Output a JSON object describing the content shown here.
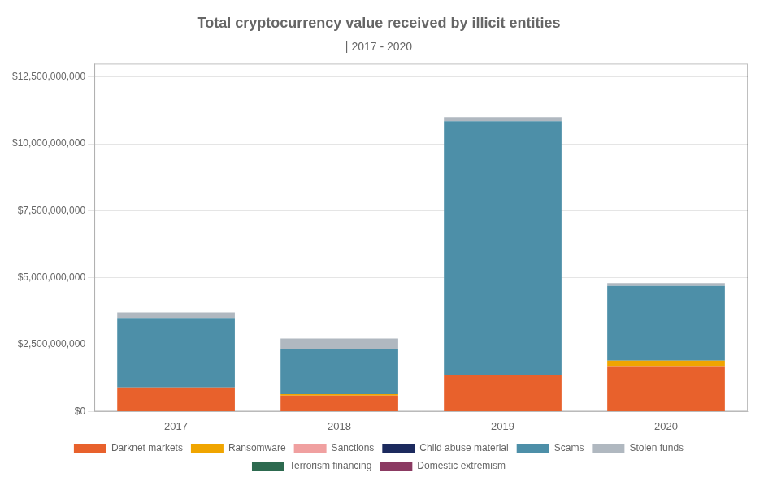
{
  "chart_data": {
    "type": "bar",
    "title": "Total cryptocurrency value received by illicit entities",
    "subtitle": "| 2017 - 2020",
    "categories": [
      "2017",
      "2018",
      "2019",
      "2020"
    ],
    "series": [
      {
        "name": "Darknet markets",
        "color": "#e8612c",
        "values": [
          900000000,
          600000000,
          1350000000,
          1700000000
        ]
      },
      {
        "name": "Ransomware",
        "color": "#f0a500",
        "values": [
          0,
          50000000,
          0,
          200000000
        ]
      },
      {
        "name": "Sanctions",
        "color": "#f0a0a0",
        "values": [
          0,
          0,
          0,
          0
        ]
      },
      {
        "name": "Child abuse material",
        "color": "#1c2a5e",
        "values": [
          0,
          0,
          0,
          0
        ]
      },
      {
        "name": "Scams",
        "color": "#4d8fa8",
        "values": [
          2600000000,
          1700000000,
          9500000000,
          2800000000
        ]
      },
      {
        "name": "Stolen funds",
        "color": "#b0b8c0",
        "values": [
          200000000,
          380000000,
          150000000,
          100000000
        ]
      },
      {
        "name": "Terrorism financing",
        "color": "#2d6a4f",
        "values": [
          0,
          0,
          0,
          0
        ]
      },
      {
        "name": "Domestic extremism",
        "color": "#8b3a62",
        "values": [
          0,
          0,
          0,
          0
        ]
      }
    ],
    "stacked": true,
    "ylim": [
      0,
      13000000000
    ],
    "yticks": [
      {
        "value": 0,
        "label": "$0"
      },
      {
        "value": 2500000000,
        "label": "$2,500,000,000"
      },
      {
        "value": 5000000000,
        "label": "$5,000,000,000"
      },
      {
        "value": 7500000000,
        "label": "$7,500,000,000"
      },
      {
        "value": 10000000000,
        "label": "$10,000,000,000"
      },
      {
        "value": 12500000000,
        "label": "$12,500,000,000"
      }
    ],
    "grid": true,
    "legend": "bottom"
  }
}
